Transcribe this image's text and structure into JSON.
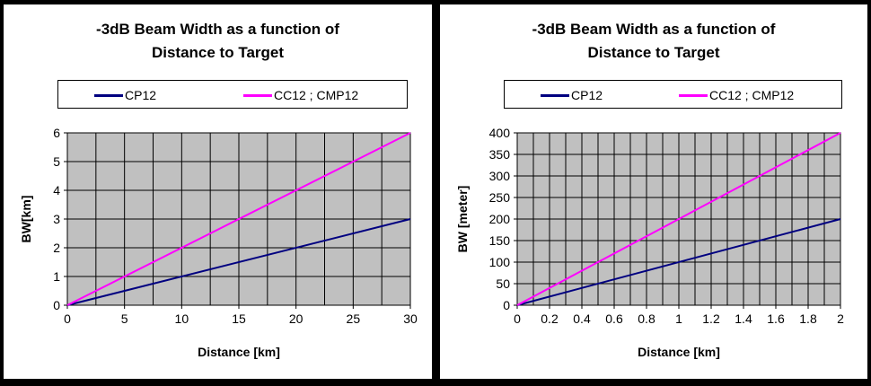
{
  "chart_data": [
    {
      "type": "line",
      "title": "-3dB Beam Width as a function of Distance to Target",
      "title_lines": [
        "-3dB Beam Width as a function of",
        "Distance to Target"
      ],
      "xlabel": "Distance  [km]",
      "ylabel": "BW[km]",
      "x": [
        0,
        30
      ],
      "xlim": [
        0,
        30
      ],
      "ylim": [
        0,
        6
      ],
      "xticks": [
        0,
        5,
        10,
        15,
        20,
        25,
        30
      ],
      "xtick_labels": [
        "0",
        "5",
        "10",
        "15",
        "20",
        "25",
        "30"
      ],
      "yticks": [
        0,
        1,
        2,
        3,
        4,
        5,
        6
      ],
      "ytick_labels": [
        "0",
        "1",
        "2",
        "3",
        "4",
        "5",
        "6"
      ],
      "grid": true,
      "legend_position": "top",
      "series": [
        {
          "name": "CP12",
          "values": [
            0,
            3
          ],
          "color": "#000080"
        },
        {
          "name": "CC12 ; CMP12",
          "values": [
            0,
            6
          ],
          "color": "#FF00FF"
        }
      ]
    },
    {
      "type": "line",
      "title": "-3dB Beam Width as a function of Distance to Target",
      "title_lines": [
        "-3dB Beam Width as a function of",
        "Distance to Target"
      ],
      "xlabel": "Distance  [km]",
      "ylabel": "BW [meter]",
      "x": [
        0,
        2
      ],
      "xlim": [
        0,
        2
      ],
      "ylim": [
        0,
        400
      ],
      "xticks": [
        0,
        0.2,
        0.4,
        0.6,
        0.8,
        1,
        1.2,
        1.4,
        1.6,
        1.8,
        2
      ],
      "xtick_labels": [
        "0",
        "0.2",
        "0.4",
        "0.6",
        "0.8",
        "1",
        "1.2",
        "1.4",
        "1.6",
        "1.8",
        "2"
      ],
      "yticks": [
        0,
        50,
        100,
        150,
        200,
        250,
        300,
        350,
        400
      ],
      "ytick_labels": [
        "0",
        "50",
        "100",
        "150",
        "200",
        "250",
        "300",
        "350",
        "400"
      ],
      "grid": true,
      "legend_position": "top",
      "series": [
        {
          "name": "CP12",
          "values": [
            0,
            200
          ],
          "color": "#000080"
        },
        {
          "name": "CC12 ; CMP12",
          "values": [
            0,
            400
          ],
          "color": "#FF00FF"
        }
      ]
    }
  ],
  "style": {
    "page_background": "#000000",
    "panel_background": "#FFFFFF",
    "plot_background": "#C0C0C0",
    "grid_color": "#000000"
  }
}
